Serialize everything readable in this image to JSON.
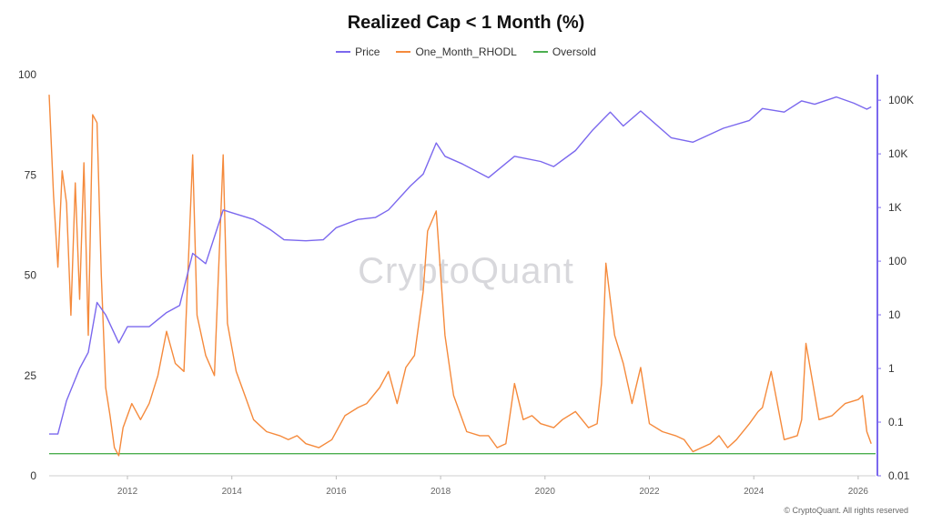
{
  "page": {
    "watermark": "CryptoQuant",
    "credit": "© CryptoQuant. All rights reserved"
  },
  "chart_data": {
    "type": "line",
    "title": "Realized Cap < 1 Month (%)",
    "legend_position": "top-center",
    "grid": false,
    "x_range": [
      "2010-07",
      "2026-05"
    ],
    "x_ticks": [
      "2012",
      "2014",
      "2016",
      "2018",
      "2020",
      "2022",
      "2024",
      "2026"
    ],
    "y_left": {
      "range": [
        0,
        100
      ],
      "ticks": [
        "0",
        "25",
        "50",
        "75",
        "100"
      ]
    },
    "y_right": {
      "scale": "log",
      "range": [
        0.01,
        300000
      ],
      "ticks": [
        "0.01",
        "0.1",
        "1",
        "10",
        "100",
        "1K",
        "10K",
        "100K"
      ]
    },
    "series": [
      {
        "name": "Price",
        "axis": "right",
        "color": "#7b68ee",
        "x": [
          "2010-07",
          "2010-09",
          "2010-11",
          "2011-02",
          "2011-04",
          "2011-06",
          "2011-08",
          "2011-11",
          "2012-01",
          "2012-06",
          "2012-10",
          "2013-01",
          "2013-04",
          "2013-07",
          "2013-11",
          "2014-01",
          "2014-06",
          "2014-10",
          "2015-01",
          "2015-06",
          "2015-10",
          "2016-01",
          "2016-06",
          "2016-10",
          "2017-01",
          "2017-06",
          "2017-09",
          "2017-12",
          "2018-02",
          "2018-06",
          "2018-12",
          "2019-06",
          "2019-12",
          "2020-03",
          "2020-08",
          "2020-12",
          "2021-04",
          "2021-07",
          "2021-11",
          "2022-06",
          "2022-11",
          "2023-06",
          "2023-12",
          "2024-03",
          "2024-08",
          "2024-12",
          "2025-03",
          "2025-08",
          "2025-12",
          "2026-03",
          "2026-04"
        ],
        "values": [
          0.06,
          0.06,
          0.25,
          1,
          2,
          17,
          10,
          3,
          6,
          6,
          11,
          15,
          140,
          90,
          900,
          800,
          600,
          380,
          250,
          240,
          250,
          420,
          600,
          650,
          900,
          2500,
          4200,
          16000,
          9000,
          6500,
          3600,
          9000,
          7200,
          5800,
          11500,
          28000,
          60000,
          33000,
          63000,
          20000,
          16500,
          30000,
          42000,
          70000,
          60000,
          97000,
          84000,
          115000,
          88000,
          68000,
          75000
        ]
      },
      {
        "name": "One_Month_RHODL",
        "axis": "left",
        "color": "#f58a3c",
        "x": [
          "2010-07",
          "2010-08",
          "2010-09",
          "2010-10",
          "2010-11",
          "2010-12",
          "2011-01",
          "2011-02",
          "2011-03",
          "2011-04",
          "2011-05",
          "2011-06",
          "2011-07",
          "2011-08",
          "2011-09",
          "2011-10",
          "2011-11",
          "2011-12",
          "2012-02",
          "2012-04",
          "2012-06",
          "2012-08",
          "2012-10",
          "2012-12",
          "2013-02",
          "2013-04",
          "2013-05",
          "2013-07",
          "2013-09",
          "2013-11",
          "2013-12",
          "2014-02",
          "2014-04",
          "2014-06",
          "2014-09",
          "2014-12",
          "2015-02",
          "2015-04",
          "2015-06",
          "2015-09",
          "2015-12",
          "2016-03",
          "2016-06",
          "2016-08",
          "2016-11",
          "2017-01",
          "2017-03",
          "2017-05",
          "2017-07",
          "2017-09",
          "2017-10",
          "2017-12",
          "2018-02",
          "2018-04",
          "2018-07",
          "2018-10",
          "2018-12",
          "2019-02",
          "2019-04",
          "2019-06",
          "2019-08",
          "2019-10",
          "2019-12",
          "2020-03",
          "2020-05",
          "2020-08",
          "2020-11",
          "2021-01",
          "2021-02",
          "2021-03",
          "2021-05",
          "2021-07",
          "2021-09",
          "2021-11",
          "2022-01",
          "2022-04",
          "2022-07",
          "2022-09",
          "2022-11",
          "2023-01",
          "2023-03",
          "2023-05",
          "2023-07",
          "2023-09",
          "2023-12",
          "2024-02",
          "2024-03",
          "2024-05",
          "2024-08",
          "2024-11",
          "2024-12",
          "2025-01",
          "2025-04",
          "2025-07",
          "2025-10",
          "2026-01",
          "2026-02",
          "2026-03",
          "2026-04"
        ],
        "values": [
          95,
          70,
          52,
          76,
          68,
          40,
          73,
          44,
          78,
          35,
          90,
          88,
          50,
          22,
          15,
          7,
          5,
          12,
          18,
          14,
          18,
          25,
          36,
          28,
          26,
          80,
          40,
          30,
          25,
          80,
          38,
          26,
          20,
          14,
          11,
          10,
          9,
          10,
          8,
          7,
          9,
          15,
          17,
          18,
          22,
          26,
          18,
          27,
          30,
          46,
          61,
          66,
          35,
          20,
          11,
          10,
          10,
          7,
          8,
          23,
          14,
          15,
          13,
          12,
          14,
          16,
          12,
          13,
          23,
          53,
          35,
          28,
          18,
          27,
          13,
          11,
          10,
          9,
          6,
          7,
          8,
          10,
          7,
          9,
          13,
          16,
          17,
          26,
          9,
          10,
          14,
          33,
          14,
          15,
          18,
          19,
          20,
          11,
          8
        ]
      },
      {
        "name": "Oversold",
        "axis": "left",
        "color": "#4caf50",
        "x": [
          "2010-07",
          "2026-05"
        ],
        "values": [
          5.5,
          5.5
        ]
      }
    ]
  }
}
